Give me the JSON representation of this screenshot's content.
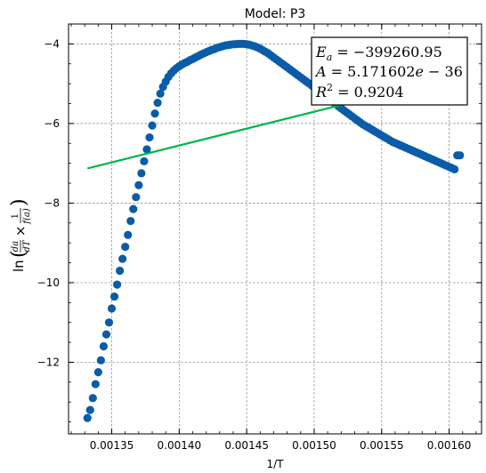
{
  "chart_data": {
    "type": "scatter",
    "title": "Model: P3",
    "xlabel": "1/T",
    "ylabel_parts": {
      "prefix": "ln",
      "num1": "da",
      "den1": "dT",
      "times": "×",
      "num2": "1",
      "den2": "f(a)"
    },
    "xlim": [
      0.001318,
      0.001624
    ],
    "ylim": [
      -13.8,
      -3.5
    ],
    "xticks": [
      {
        "value": 0.00135,
        "label": "0.00135"
      },
      {
        "value": 0.0014,
        "label": "0.00140"
      },
      {
        "value": 0.00145,
        "label": "0.00145"
      },
      {
        "value": 0.0015,
        "label": "0.00150"
      },
      {
        "value": 0.00155,
        "label": "0.00155"
      },
      {
        "value": 0.0016,
        "label": "0.00160"
      }
    ],
    "yticks": [
      {
        "value": -4,
        "label": "−4"
      },
      {
        "value": -6,
        "label": "−6"
      },
      {
        "value": -8,
        "label": "−8"
      },
      {
        "value": -10,
        "label": "−10"
      },
      {
        "value": -12,
        "label": "−12"
      }
    ],
    "grid": true,
    "series": [
      {
        "kind": "scatter",
        "color": "#0a5ca8",
        "x": [
          0.001332,
          0.001334,
          0.001336,
          0.001338,
          0.00134,
          0.001342,
          0.001344,
          0.001346,
          0.001348,
          0.00135,
          0.001352,
          0.001354,
          0.001356,
          0.001358,
          0.00136,
          0.001362,
          0.001364,
          0.001366,
          0.001368,
          0.00137,
          0.001372,
          0.001374,
          0.001376,
          0.001378,
          0.00138,
          0.001382,
          0.001384,
          0.001386,
          0.001388,
          0.00139,
          0.001392,
          0.001394,
          0.001396,
          0.001398,
          0.0014,
          0.001402,
          0.001404,
          0.001406,
          0.001408,
          0.00141,
          0.001412,
          0.001414,
          0.001416,
          0.001418,
          0.00142,
          0.001422,
          0.001424,
          0.001426,
          0.001428,
          0.00143,
          0.001432,
          0.001434,
          0.001436,
          0.001438,
          0.00144,
          0.001442,
          0.001444,
          0.001446,
          0.001448,
          0.00145,
          0.001452,
          0.001454,
          0.001456,
          0.001458,
          0.00146,
          0.001462,
          0.001464,
          0.001466,
          0.001468,
          0.00147,
          0.001472,
          0.001474,
          0.001476,
          0.001478,
          0.00148,
          0.001482,
          0.001484,
          0.001486,
          0.001488,
          0.00149,
          0.001492,
          0.001494,
          0.001496,
          0.001498,
          0.0015,
          0.001502,
          0.001504,
          0.001506,
          0.001508,
          0.00151,
          0.001512,
          0.001514,
          0.001516,
          0.001518,
          0.00152,
          0.001522,
          0.001524,
          0.001526,
          0.001528,
          0.00153,
          0.001532,
          0.001534,
          0.001536,
          0.001538,
          0.00154,
          0.001542,
          0.001544,
          0.001546,
          0.001548,
          0.00155,
          0.001552,
          0.001554,
          0.001556,
          0.001558,
          0.00156,
          0.001562,
          0.001564,
          0.001566,
          0.001568,
          0.00157,
          0.001572,
          0.001574,
          0.001576,
          0.001578,
          0.00158,
          0.001582,
          0.001584,
          0.001586,
          0.001588,
          0.00159,
          0.001592,
          0.001594,
          0.001596,
          0.001598,
          0.0016,
          0.001602,
          0.001604,
          0.001606,
          0.001608
        ],
        "y": [
          -13.4,
          -13.2,
          -12.9,
          -12.55,
          -12.25,
          -11.95,
          -11.6,
          -11.3,
          -11.0,
          -10.65,
          -10.35,
          -10.05,
          -9.7,
          -9.4,
          -9.1,
          -8.8,
          -8.45,
          -8.15,
          -7.85,
          -7.55,
          -7.25,
          -6.95,
          -6.65,
          -6.35,
          -6.05,
          -5.75,
          -5.48,
          -5.25,
          -5.08,
          -4.95,
          -4.83,
          -4.74,
          -4.67,
          -4.61,
          -4.56,
          -4.52,
          -4.48,
          -4.45,
          -4.41,
          -4.38,
          -4.34,
          -4.31,
          -4.27,
          -4.24,
          -4.21,
          -4.18,
          -4.15,
          -4.13,
          -4.1,
          -4.08,
          -4.06,
          -4.04,
          -4.03,
          -4.02,
          -4.01,
          -4.005,
          -4.0,
          -4.0,
          -4.0,
          -4.01,
          -4.02,
          -4.04,
          -4.06,
          -4.09,
          -4.12,
          -4.16,
          -4.2,
          -4.24,
          -4.29,
          -4.34,
          -4.39,
          -4.44,
          -4.49,
          -4.54,
          -4.59,
          -4.64,
          -4.69,
          -4.74,
          -4.79,
          -4.84,
          -4.89,
          -4.94,
          -4.99,
          -5.04,
          -5.1,
          -5.15,
          -5.2,
          -5.25,
          -5.31,
          -5.36,
          -5.41,
          -5.46,
          -5.51,
          -5.57,
          -5.62,
          -5.67,
          -5.72,
          -5.77,
          -5.82,
          -5.87,
          -5.92,
          -5.97,
          -6.02,
          -6.06,
          -6.1,
          -6.14,
          -6.18,
          -6.22,
          -6.26,
          -6.3,
          -6.34,
          -6.38,
          -6.42,
          -6.46,
          -6.49,
          -6.52,
          -6.55,
          -6.58,
          -6.61,
          -6.64,
          -6.67,
          -6.7,
          -6.73,
          -6.76,
          -6.79,
          -6.82,
          -6.85,
          -6.88,
          -6.91,
          -6.94,
          -6.97,
          -7.0,
          -7.03,
          -7.06,
          -7.09,
          -7.12,
          -7.15,
          -6.8,
          -6.8
        ]
      },
      {
        "kind": "line",
        "color": "#00b64a",
        "x": [
          0.001332,
          0.00161
        ],
        "y": [
          -7.13,
          -4.77
        ]
      }
    ],
    "annotation": {
      "line1": "E_a = -399260.95",
      "line2": "A = 5.171602e-36",
      "line3": "R^2 = 0.9204",
      "line1_parts": {
        "sym": "E",
        "sub": "a",
        "eq": " = −399260.95"
      },
      "line2_parts": {
        "sym": "A",
        "eq": " = 5.171602",
        "e": "e",
        "rest": " − 36"
      },
      "line3_parts": {
        "sym": "R",
        "sup": "2",
        "eq": " = 0.9204"
      }
    }
  }
}
